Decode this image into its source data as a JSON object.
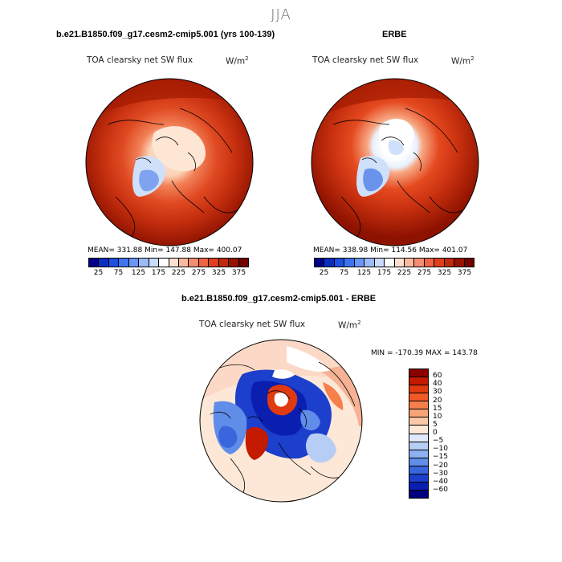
{
  "season": "JJA",
  "panels": [
    {
      "title": "b.e21.B1850.f09_g17.cesm2-cmip5.001 (yrs 100-139)",
      "variable": "TOA clearsky net SW flux",
      "units": "W/m",
      "units_sup": "2",
      "stats": "MEAN= 331.88   Min= 147.88   Max= 400.07"
    },
    {
      "title": "ERBE",
      "variable": "TOA clearsky net SW flux",
      "units": "W/m",
      "units_sup": "2",
      "stats": "MEAN= 338.98   Min= 114.56   Max= 401.07"
    }
  ],
  "abs_colorbar": {
    "ticks": [
      "25",
      "75",
      "125",
      "175",
      "225",
      "275",
      "325",
      "375"
    ],
    "colors": [
      "#00008b",
      "#0a2fbf",
      "#1f4fe0",
      "#3f74f0",
      "#6a96f5",
      "#9bbaf8",
      "#cadcfb",
      "#ffffff",
      "#fde0d0",
      "#fbb9a0",
      "#f58d70",
      "#ef6444",
      "#e0401f",
      "#c02a0c",
      "#961200",
      "#730000"
    ]
  },
  "diff_panel": {
    "title": "b.e21.B1850.f09_g17.cesm2-cmip5.001 - ERBE",
    "variable": "TOA clearsky net SW flux",
    "units": "W/m",
    "units_sup": "2",
    "minmax": "MIN = -170.39  MAX = 143.78"
  },
  "diff_colorbar": {
    "labels": [
      "60",
      "40",
      "30",
      "20",
      "15",
      "10",
      "5",
      "0",
      "−5",
      "−10",
      "−15",
      "−20",
      "−30",
      "−40",
      "−60"
    ],
    "colors": [
      "#8b0000",
      "#c41a00",
      "#e03a10",
      "#f05a28",
      "#f5804c",
      "#f8a478",
      "#fbc8a8",
      "#fde8d8",
      "#dfe9fb",
      "#b6cdf6",
      "#8cb0f0",
      "#5f8de8",
      "#3a66dd",
      "#1c3fcc",
      "#0a1fb0",
      "#000080"
    ]
  }
}
